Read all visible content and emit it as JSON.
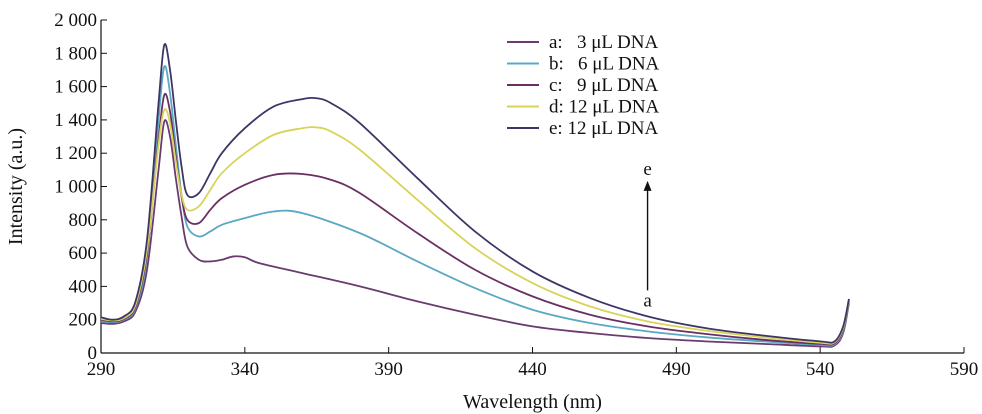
{
  "chart_data": {
    "type": "line",
    "title": "",
    "xlabel": "Wavelength (nm)",
    "ylabel": "Intensity (a.u.)",
    "xlim": [
      290,
      590
    ],
    "ylim": [
      0,
      2000
    ],
    "x_ticks": [
      290,
      340,
      390,
      440,
      490,
      540,
      590
    ],
    "x_tick_labels": [
      "290",
      "340",
      "390",
      "440",
      "490",
      "540",
      "590"
    ],
    "y_ticks": [
      0,
      200,
      400,
      600,
      800,
      1000,
      1200,
      1400,
      1600,
      1800,
      2000
    ],
    "y_tick_labels": [
      "0",
      "200",
      "400",
      "600",
      "800",
      "1 000",
      "1 200",
      "1 400",
      "1 600",
      "1 800",
      "2 000"
    ],
    "grid": false,
    "legend_position": "top-center",
    "series": [
      {
        "name": "a:   3 μL DNA",
        "color": "#6b3a6f",
        "x": [
          290,
          294,
          298,
          302,
          306,
          310,
          312,
          314,
          316,
          318,
          320,
          324,
          328,
          332,
          336,
          340,
          345,
          360,
          380,
          400,
          420,
          440,
          460,
          480,
          500,
          520,
          540,
          545,
          548,
          550
        ],
        "y": [
          180,
          175,
          190,
          250,
          500,
          1100,
          1390,
          1300,
          1050,
          820,
          640,
          560,
          550,
          560,
          580,
          575,
          540,
          480,
          400,
          310,
          230,
          160,
          120,
          90,
          70,
          55,
          40,
          45,
          120,
          300
        ]
      },
      {
        "name": "b:   6 μL DNA",
        "color": "#5aa8c4",
        "x": [
          290,
          294,
          298,
          302,
          306,
          310,
          312,
          314,
          316,
          318,
          320,
          324,
          328,
          332,
          340,
          350,
          360,
          380,
          400,
          420,
          440,
          460,
          480,
          500,
          520,
          540,
          545,
          548,
          550
        ],
        "y": [
          190,
          185,
          200,
          270,
          580,
          1400,
          1720,
          1560,
          1250,
          950,
          760,
          700,
          730,
          770,
          810,
          850,
          840,
          720,
          550,
          390,
          260,
          180,
          130,
          95,
          70,
          48,
          52,
          130,
          310
        ]
      },
      {
        "name": "c:   9 μL DNA",
        "color": "#6a2f63",
        "x": [
          290,
          294,
          298,
          302,
          306,
          310,
          312,
          314,
          316,
          318,
          320,
          324,
          328,
          332,
          340,
          350,
          360,
          370,
          380,
          400,
          420,
          440,
          460,
          480,
          500,
          520,
          540,
          545,
          548,
          550
        ],
        "y": [
          200,
          190,
          205,
          280,
          600,
          1280,
          1550,
          1450,
          1180,
          940,
          800,
          780,
          860,
          930,
          1010,
          1070,
          1075,
          1040,
          960,
          720,
          500,
          340,
          230,
          160,
          115,
          80,
          55,
          58,
          140,
          315
        ]
      },
      {
        "name": "d: 12 μL DNA",
        "color": "#d8d458",
        "x": [
          290,
          294,
          298,
          302,
          306,
          310,
          312,
          314,
          316,
          318,
          320,
          324,
          328,
          332,
          340,
          350,
          360,
          365,
          370,
          380,
          400,
          420,
          440,
          460,
          480,
          500,
          520,
          540,
          545,
          548,
          550
        ],
        "y": [
          205,
          195,
          210,
          290,
          620,
          1250,
          1460,
          1380,
          1150,
          950,
          860,
          880,
          980,
          1080,
          1200,
          1310,
          1350,
          1355,
          1330,
          1220,
          920,
          630,
          420,
          280,
          190,
          135,
          95,
          62,
          64,
          150,
          320
        ]
      },
      {
        "name": "e: 12 μL DNA",
        "color": "#3d3566",
        "x": [
          290,
          294,
          298,
          302,
          306,
          310,
          312,
          314,
          316,
          318,
          320,
          324,
          328,
          332,
          340,
          350,
          360,
          365,
          370,
          380,
          400,
          420,
          440,
          460,
          480,
          500,
          520,
          540,
          545,
          548,
          550
        ],
        "y": [
          215,
          200,
          220,
          310,
          680,
          1500,
          1850,
          1700,
          1400,
          1120,
          950,
          960,
          1080,
          1200,
          1350,
          1480,
          1525,
          1530,
          1500,
          1380,
          1050,
          730,
          490,
          330,
          220,
          150,
          105,
          70,
          70,
          160,
          325
        ]
      }
    ],
    "annotations": [
      {
        "text": "e",
        "x": 480,
        "y": 1070
      },
      {
        "text": "a",
        "x": 480,
        "y": 280
      }
    ]
  }
}
